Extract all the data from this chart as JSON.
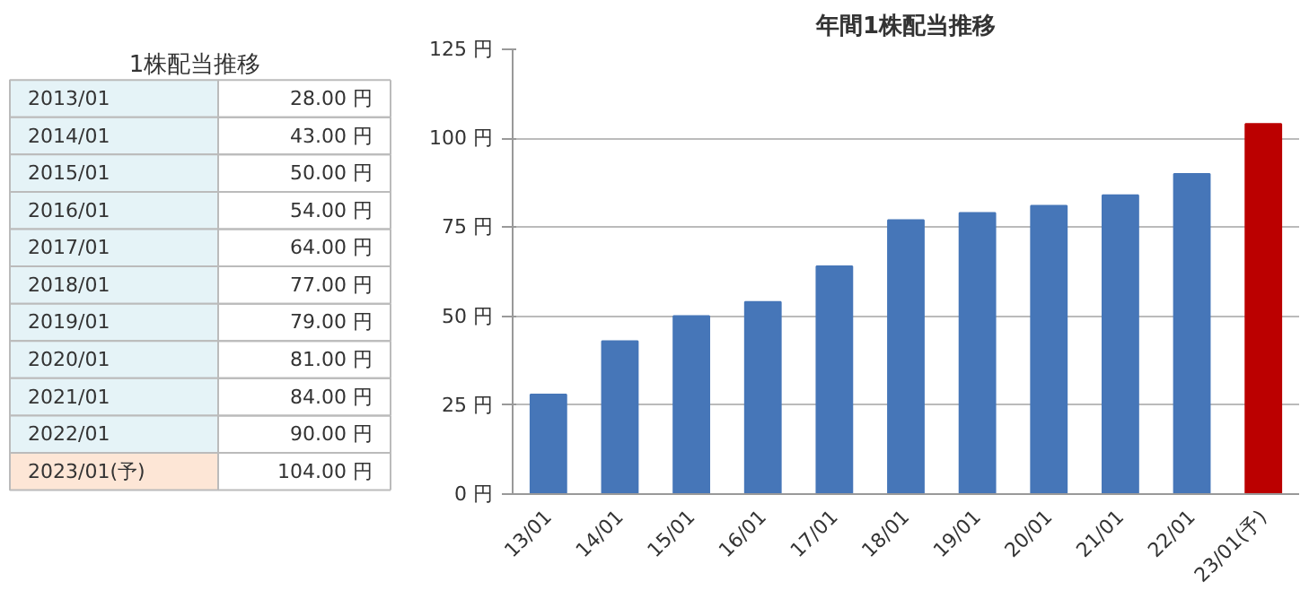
{
  "chart_data": [
    {
      "type": "other",
      "title": "1株配当推移",
      "categories": [
        "2013/01",
        "2014/01",
        "2015/01",
        "2016/01",
        "2017/01",
        "2018/01",
        "2019/01",
        "2020/01",
        "2021/01",
        "2022/01",
        "2023/01(予)"
      ],
      "values": [
        28,
        43,
        50,
        54,
        64,
        77,
        79,
        81,
        84,
        90,
        104
      ],
      "value_labels": [
        "28.00 円",
        "43.00 円",
        "50.00 円",
        "54.00 円",
        "64.00 円",
        "77.00 円",
        "79.00 円",
        "81.00 円",
        "84.00 円",
        "90.00 円",
        "104.00 円"
      ],
      "colors": [
        "#e5f3f7",
        "#e5f3f7",
        "#e5f3f7",
        "#e5f3f7",
        "#e5f3f7",
        "#e5f3f7",
        "#e5f3f7",
        "#e5f3f7",
        "#e5f3f7",
        "#e5f3f7",
        "#fde6d6"
      ]
    },
    {
      "type": "bar",
      "title": "年間1株配当推移",
      "categories": [
        "13/01",
        "14/01",
        "15/01",
        "16/01",
        "17/01",
        "18/01",
        "19/01",
        "20/01",
        "21/01",
        "22/01",
        "23/01(予)"
      ],
      "values": [
        28,
        43,
        50,
        54,
        64,
        77,
        79,
        81,
        84,
        90,
        104
      ],
      "colors": [
        "#4676b8",
        "#4676b8",
        "#4676b8",
        "#4676b8",
        "#4676b8",
        "#4676b8",
        "#4676b8",
        "#4676b8",
        "#4676b8",
        "#4676b8",
        "#bb0000"
      ],
      "ylim": [
        0,
        125
      ],
      "yticks": [
        {
          "value": 0,
          "label": "0 円"
        },
        {
          "value": 25,
          "label": "25 円"
        },
        {
          "value": 50,
          "label": "50 円"
        },
        {
          "value": 75,
          "label": "75 円"
        },
        {
          "value": 100,
          "label": "100 円"
        },
        {
          "value": 125,
          "label": "125 円"
        }
      ],
      "grid": "y"
    }
  ]
}
